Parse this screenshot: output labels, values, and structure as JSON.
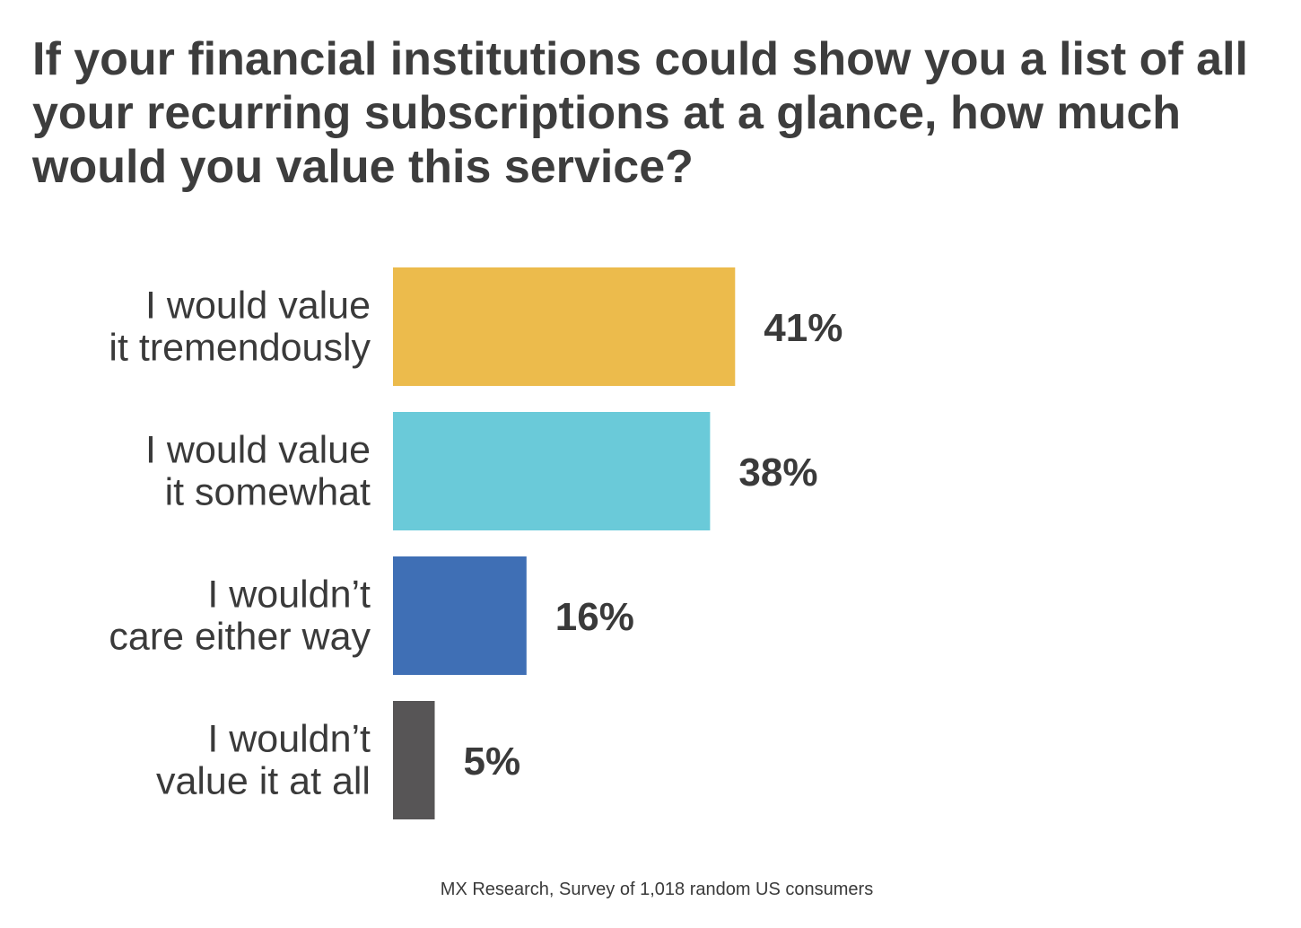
{
  "title": "If your financial institutions could show you a list of all your recurring subscriptions at a glance, how much would  you value this service?",
  "source": "MX Research, Survey of 1,018 random US consumers",
  "chart_data": {
    "type": "bar",
    "orientation": "horizontal",
    "title": "If your financial institutions could show you a list of all your recurring subscriptions at a glance, how much would  you value this service?",
    "categories": [
      [
        "I would value",
        "it tremendously"
      ],
      [
        "I would value",
        "it somewhat"
      ],
      [
        "I wouldn’t",
        "care either way"
      ],
      [
        "I wouldn’t",
        "value it at all"
      ]
    ],
    "values": [
      41,
      38,
      16,
      5
    ],
    "value_labels": [
      "41%",
      "38%",
      "16%",
      "5%"
    ],
    "colors": [
      "#ECBB4C",
      "#6ACAD9",
      "#3F6FB5",
      "#575556"
    ],
    "xlabel": "",
    "ylabel": "",
    "grid": false,
    "legend": "none"
  }
}
